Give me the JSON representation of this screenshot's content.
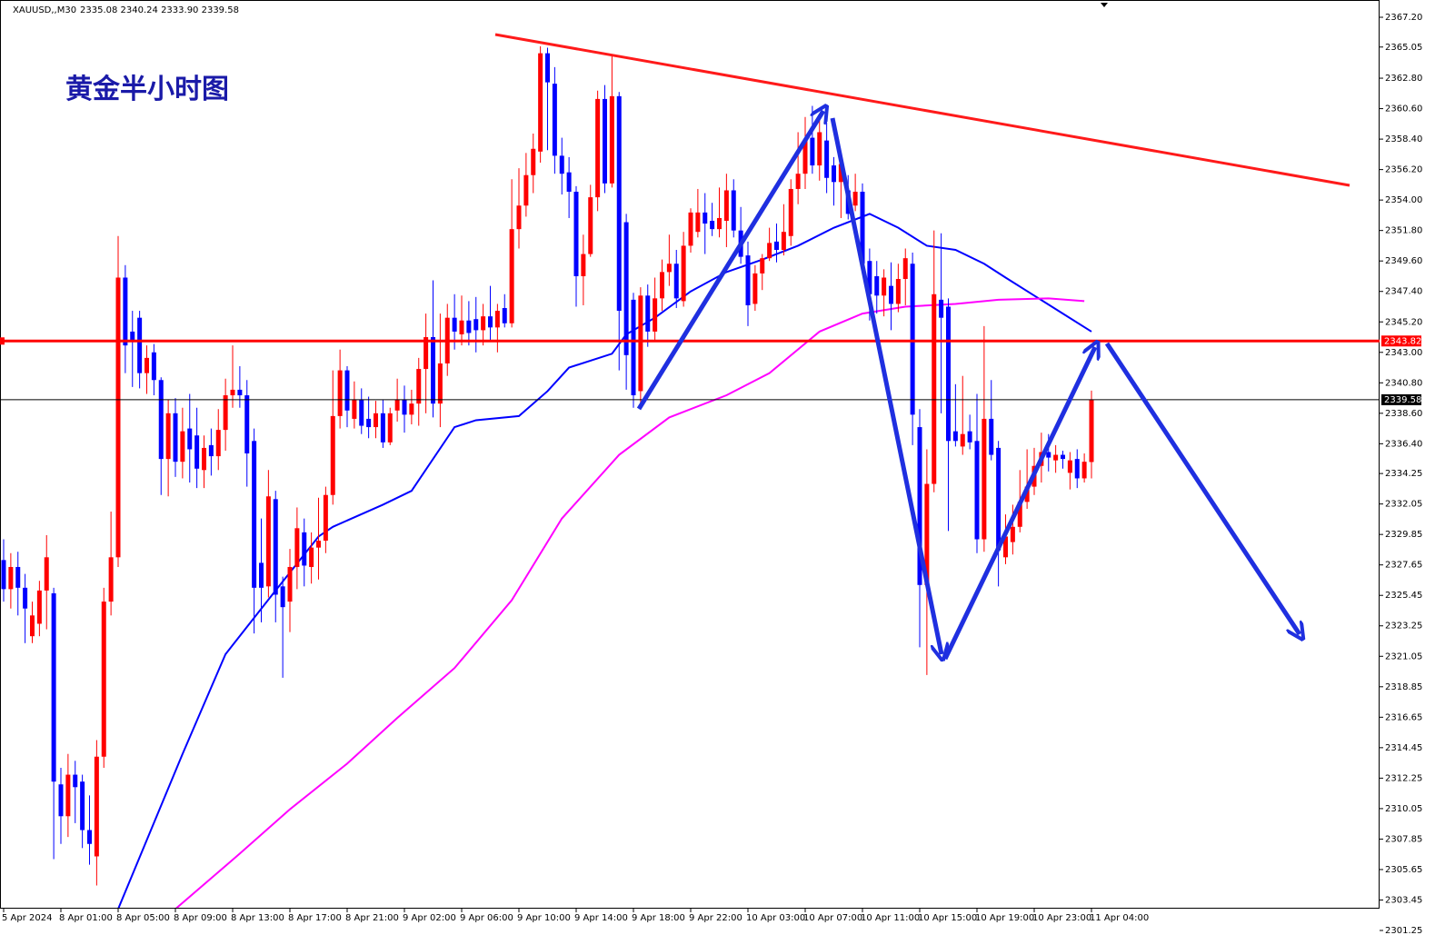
{
  "chart_data": {
    "type": "candlestick",
    "title": "黄金半小时图",
    "header_symbol": "XAUUSD,,M30",
    "header_ohlc": "2335.08 2340.24 2333.90 2339.58",
    "up_color": "#ff0000",
    "down_color": "#0000ff",
    "ylim": [
      2301.25,
      2367.2
    ],
    "yticks": [
      {
        "value": 2367.2,
        "label": "2367.20"
      },
      2365.05,
      {
        "value": 2362.8,
        "label": "2362.80"
      },
      {
        "value": 2360.6,
        "label": "2360.60"
      },
      {
        "value": 2358.4,
        "label": "2358.40"
      },
      {
        "value": 2356.2,
        "label": "2356.20"
      },
      {
        "value": 2354,
        "label": "2354.00"
      },
      {
        "value": 2351.8,
        "label": "2351.80"
      },
      {
        "value": 2349.6,
        "label": "2349.60"
      },
      {
        "value": 2347.4,
        "label": "2347.40"
      },
      {
        "value": 2345.2,
        "label": "2345.20"
      },
      {
        "value": 2343,
        "label": "2343.00"
      },
      {
        "value": 2340.8,
        "label": "2340.80"
      },
      {
        "value": 2338.6,
        "label": "2338.60"
      },
      {
        "value": 2336.4,
        "label": "2336.40"
      },
      2334.25,
      2332.05,
      2329.85,
      2327.65,
      2325.45,
      2323.25,
      2321.05,
      2318.85,
      2316.65,
      2314.45,
      2312.25,
      2310.05,
      2307.85,
      2305.65,
      2303.45,
      2301.25
    ],
    "categories": [
      "5 Apr 2024",
      null,
      null,
      null,
      null,
      null,
      null,
      null,
      "8 Apr 01:00",
      null,
      null,
      null,
      null,
      null,
      null,
      null,
      "8 Apr 05:00",
      null,
      null,
      null,
      null,
      null,
      null,
      null,
      "8 Apr 09:00",
      null,
      null,
      null,
      null,
      null,
      null,
      null,
      "8 Apr 13:00",
      null,
      null,
      null,
      null,
      null,
      null,
      null,
      "8 Apr 17:00",
      null,
      null,
      null,
      null,
      null,
      null,
      null,
      "8 Apr 21:00",
      null,
      null,
      null,
      null,
      null,
      null,
      null,
      "9 Apr 02:00",
      null,
      null,
      null,
      null,
      null,
      null,
      null,
      "9 Apr 06:00",
      null,
      null,
      null,
      null,
      null,
      null,
      null,
      "9 Apr 10:00",
      null,
      null,
      null,
      null,
      null,
      null,
      null,
      "9 Apr 14:00",
      null,
      null,
      null,
      null,
      null,
      null,
      null,
      "9 Apr 18:00",
      null,
      null,
      null,
      null,
      null,
      null,
      null,
      "9 Apr 22:00",
      null,
      null,
      null,
      null,
      null,
      null,
      null,
      "10 Apr 03:00",
      null,
      null,
      null,
      null,
      null,
      null,
      null,
      "10 Apr 07:00",
      null,
      null,
      null,
      null,
      null,
      null,
      null,
      "10 Apr 11:00",
      null,
      null,
      null,
      null,
      null,
      null,
      null,
      "10 Apr 15:00",
      null,
      null,
      null,
      null,
      null,
      null,
      null,
      "10 Apr 19:00",
      null,
      null,
      null,
      null,
      null,
      null,
      null,
      "10 Apr 23:00",
      null,
      null,
      null,
      null,
      null,
      null,
      null,
      "11 Apr 04:00"
    ],
    "open": [
      2328.0,
      2325.9,
      2327.5,
      2326.0,
      2322.5,
      2323.4,
      2325.8,
      2325.6,
      2311.8,
      2309.5,
      2312.5,
      2312.0,
      2308.5,
      2306.6,
      2313.8,
      2325.0,
      2328.2,
      2348.4,
      2344.5,
      2345.5,
      2341.5,
      2343.0,
      2341.0,
      2335.3,
      2338.6,
      2335.1,
      2337.5,
      2337.0,
      2334.5,
      2336.3,
      2335.5,
      2337.4,
      2339.9,
      2340.3,
      2339.9,
      2336.6,
      2327.8,
      2326.1,
      2332.4,
      2326.1,
      2325.0,
      2327.5,
      2330.0,
      2327.5,
      2328.9,
      2329.4,
      2332.7,
      2338.4,
      2341.7,
      2338.2,
      2339.6,
      2338.2,
      2337.6,
      2338.6,
      2336.5,
      2338.8,
      2339.6,
      2338.5,
      2339.3,
      2341.8,
      2344.1,
      2339.3,
      2342.2,
      2345.5,
      2344.3,
      2345.3,
      2345.4,
      2344.6,
      2345.6,
      2344.8,
      2346.2,
      2345.1,
      2351.9,
      2353.6,
      2355.8,
      2357.5,
      2364.6,
      2362.4,
      2357.2,
      2356.0,
      2354.6,
      2348.5,
      2350.1,
      2354.2,
      2361.3,
      2355.2,
      2361.5,
      2352.4,
      2346.8,
      2340.2,
      2347.1,
      2344.5,
      2346.9,
      2348.8,
      2349.4,
      2346.7,
      2350.7,
      2351.7,
      2353.1,
      2352.5,
      2351.9,
      2352.5,
      2354.7,
      2351.8,
      2350.0,
      2346.5,
      2348.7,
      2349.8,
      2351.0,
      2350.4,
      2351.4,
      2354.8,
      2355.9,
      2358.5,
      2356.5,
      2358.3,
      2356.5,
      2355.3,
      2354.7,
      2353.6,
      2354.6,
      2349.6,
      2348.5,
      2347.1,
      2347.8,
      2346.5,
      2348.3,
      2349.4,
      2337.6,
      2326.2,
      2333.5,
      2346.8,
      2346.3,
      2337.3,
      2336.2,
      2337.3,
      2336.6,
      2329.5,
      2338.2,
      2336.1,
      2328.2,
      2329.3,
      2330.4,
      2332.2,
      2333.3,
      2334.8,
      2335.8,
      2335.2,
      2335.6,
      2334.3,
      2335.3,
      2333.9,
      2335.08
    ],
    "high": [
      2329.5,
      2328.5,
      2328.6,
      2327.0,
      2325.0,
      2326.5,
      2329.8,
      2326.0,
      2313.0,
      2314.0,
      2313.5,
      2312.5,
      2311.0,
      2315.0,
      2326.0,
      2331.5,
      2351.4,
      2349.3,
      2346.0,
      2346.0,
      2343.5,
      2343.6,
      2341.2,
      2339.6,
      2339.7,
      2339.0,
      2340.0,
      2339.0,
      2337.0,
      2337.5,
      2338.9,
      2341.1,
      2343.5,
      2342.0,
      2341.0,
      2337.5,
      2331.0,
      2334.5,
      2333.0,
      2326.8,
      2328.8,
      2331.8,
      2331.0,
      2330.0,
      2332.5,
      2333.3,
      2341.7,
      2343.2,
      2342.0,
      2340.9,
      2340.4,
      2339.8,
      2339.5,
      2339.6,
      2339.0,
      2341.1,
      2340.6,
      2340.3,
      2342.6,
      2345.8,
      2348.2,
      2345.8,
      2346.5,
      2347.2,
      2347.1,
      2346.7,
      2347.0,
      2346.5,
      2347.8,
      2346.5,
      2347.2,
      2355.5,
      2356.3,
      2357.4,
      2358.8,
      2365.1,
      2365.0,
      2363.6,
      2358.5,
      2357.1,
      2355.0,
      2351.5,
      2355.1,
      2361.9,
      2362.3,
      2364.5,
      2361.8,
      2353.0,
      2347.3,
      2347.7,
      2347.9,
      2348.4,
      2349.7,
      2351.5,
      2350.4,
      2351.7,
      2353.4,
      2354.8,
      2354.5,
      2353.8,
      2354.9,
      2355.9,
      2355.5,
      2353.5,
      2351.0,
      2349.3,
      2350.1,
      2352.0,
      2352.3,
      2353.7,
      2355.5,
      2358.9,
      2360.0,
      2360.8,
      2359.8,
      2359.6,
      2357.1,
      2357.4,
      2355.8,
      2355.9,
      2355.2,
      2350.5,
      2349.6,
      2349.0,
      2349.5,
      2349.4,
      2350.5,
      2350.2,
      2338.9,
      2336.0,
      2351.8,
      2351.6,
      2346.9,
      2340.7,
      2341.3,
      2338.5,
      2340.0,
      2344.9,
      2341.0,
      2336.6,
      2331.3,
      2332.0,
      2334.5,
      2336.0,
      2336.1,
      2337.2,
      2337.1,
      2336.3,
      2335.9,
      2335.8,
      2336.0,
      2335.7,
      2340.24
    ],
    "low": [
      2325.0,
      2324.5,
      2324.0,
      2322.0,
      2322.0,
      2322.5,
      2323.0,
      2306.4,
      2307.5,
      2308.0,
      2309.0,
      2307.2,
      2306.0,
      2304.5,
      2313.0,
      2324.0,
      2327.5,
      2341.5,
      2340.5,
      2340.4,
      2340.0,
      2339.9,
      2332.7,
      2332.6,
      2334.0,
      2333.9,
      2333.6,
      2333.2,
      2333.2,
      2334.1,
      2334.5,
      2335.9,
      2339.0,
      2339.0,
      2333.3,
      2322.7,
      2323.5,
      2325.3,
      2323.5,
      2319.5,
      2322.8,
      2325.9,
      2326.1,
      2326.3,
      2326.6,
      2328.5,
      2332.0,
      2337.5,
      2337.6,
      2337.5,
      2337.1,
      2336.8,
      2336.8,
      2336.1,
      2336.3,
      2338.0,
      2337.2,
      2337.8,
      2337.7,
      2338.6,
      2338.3,
      2337.6,
      2341.3,
      2343.2,
      2343.5,
      2343.5,
      2343.0,
      2343.5,
      2343.8,
      2343.0,
      2344.8,
      2344.8,
      2350.5,
      2352.8,
      2354.5,
      2356.7,
      2357.6,
      2355.9,
      2354.4,
      2352.7,
      2346.3,
      2346.4,
      2349.9,
      2353.2,
      2354.5,
      2354.9,
      2341.7,
      2340.3,
      2339.0,
      2339.3,
      2343.4,
      2343.9,
      2346.0,
      2347.8,
      2346.2,
      2346.3,
      2350.2,
      2351.3,
      2350.1,
      2351.4,
      2351.3,
      2350.6,
      2351.3,
      2349.4,
      2344.9,
      2346.0,
      2347.5,
      2349.6,
      2349.5,
      2350.0,
      2350.7,
      2353.7,
      2354.8,
      2355.9,
      2355.4,
      2354.5,
      2353.6,
      2352.7,
      2352.6,
      2353.2,
      2349.1,
      2345.3,
      2345.8,
      2345.6,
      2344.6,
      2345.9,
      2346.4,
      2336.3,
      2321.7,
      2319.7,
      2332.9,
      2338.6,
      2330.1,
      2336.2,
      2335.6,
      2336.0,
      2328.5,
      2328.6,
      2335.2,
      2326.1,
      2327.7,
      2328.4,
      2330.0,
      2331.7,
      2332.7,
      2333.6,
      2334.4,
      2334.3,
      2334.6,
      2333.1,
      2333.2,
      2333.6,
      2333.9
    ],
    "close": [
      2325.9,
      2327.5,
      2326.0,
      2324.5,
      2324.0,
      2325.8,
      2328.2,
      2312.0,
      2309.5,
      2312.5,
      2311.6,
      2308.5,
      2307.5,
      2313.8,
      2325.0,
      2328.2,
      2348.4,
      2343.5,
      2343.8,
      2341.5,
      2342.6,
      2341.0,
      2335.3,
      2338.6,
      2335.1,
      2337.3,
      2336.0,
      2334.6,
      2336.1,
      2335.5,
      2337.4,
      2339.9,
      2340.3,
      2339.9,
      2335.7,
      2326.0,
      2326.0,
      2332.6,
      2325.5,
      2324.6,
      2327.5,
      2330.3,
      2327.6,
      2328.9,
      2329.4,
      2332.7,
      2338.4,
      2341.7,
      2338.8,
      2339.6,
      2337.7,
      2337.6,
      2338.6,
      2336.5,
      2338.6,
      2339.6,
      2338.5,
      2339.3,
      2341.8,
      2344.1,
      2339.3,
      2342.2,
      2345.5,
      2344.5,
      2345.3,
      2344.4,
      2344.6,
      2345.6,
      2344.8,
      2346.0,
      2345.1,
      2351.9,
      2353.6,
      2355.8,
      2357.7,
      2364.6,
      2362.5,
      2357.2,
      2355.9,
      2354.6,
      2348.5,
      2350.1,
      2354.2,
      2361.3,
      2355.2,
      2361.5,
      2346.0,
      2342.8,
      2339.9,
      2347.1,
      2344.5,
      2346.9,
      2348.8,
      2349.4,
      2346.9,
      2350.7,
      2353.1,
      2353.1,
      2352.3,
      2351.9,
      2352.7,
      2354.7,
      2351.8,
      2349.9,
      2346.4,
      2348.7,
      2349.8,
      2350.9,
      2350.4,
      2351.7,
      2354.8,
      2355.9,
      2358.3,
      2356.5,
      2358.9,
      2355.6,
      2355.3,
      2356.6,
      2353.0,
      2354.6,
      2349.4,
      2347.2,
      2347.1,
      2348.4,
      2346.5,
      2348.3,
      2349.8,
      2338.5,
      2326.2,
      2333.5,
      2347.2,
      2345.5,
      2336.6,
      2336.6,
      2337.1,
      2336.5,
      2329.5,
      2338.2,
      2335.6,
      2328.7,
      2329.7,
      2330.4,
      2332.2,
      2333.3,
      2334.8,
      2335.8,
      2335.4,
      2335.6,
      2335.3,
      2335.2,
      2333.9,
      2335.1,
      2339.58
    ],
    "lines": [
      {
        "color": "#0000ff",
        "x": [
          16,
          25,
          31,
          38,
          44,
          46,
          53,
          57,
          63,
          66,
          72,
          76,
          79,
          85,
          87,
          91,
          96,
          101,
          106,
          111,
          116,
          121,
          125,
          129,
          133,
          137,
          140,
          144,
          148,
          152
        ],
        "values": [
          2302.8,
          2314.0,
          2321.2,
          2325.8,
          2329.7,
          2330.4,
          2332.0,
          2333.0,
          2337.6,
          2338.1,
          2338.4,
          2340.2,
          2341.9,
          2342.9,
          2344.3,
          2345.5,
          2347.4,
          2348.8,
          2349.7,
          2350.7,
          2352.0,
          2353.0,
          2352.0,
          2350.7,
          2350.4,
          2349.4,
          2348.4,
          2347.1,
          2345.8,
          2344.5
        ]
      },
      {
        "color": "#ff00ff",
        "x": [
          24,
          33,
          40,
          48,
          55,
          63,
          71,
          78,
          86,
          93,
          101,
          107,
          114,
          120,
          126,
          133,
          139,
          146,
          151
        ],
        "values": [
          2302.8,
          2306.8,
          2310.0,
          2313.3,
          2316.6,
          2320.2,
          2325.1,
          2331.0,
          2335.6,
          2338.3,
          2339.9,
          2341.5,
          2344.5,
          2345.8,
          2346.3,
          2346.5,
          2346.8,
          2346.9,
          2346.7
        ]
      }
    ],
    "hline": {
      "value": 2343.82,
      "color": "#ff0000"
    }
  }
}
